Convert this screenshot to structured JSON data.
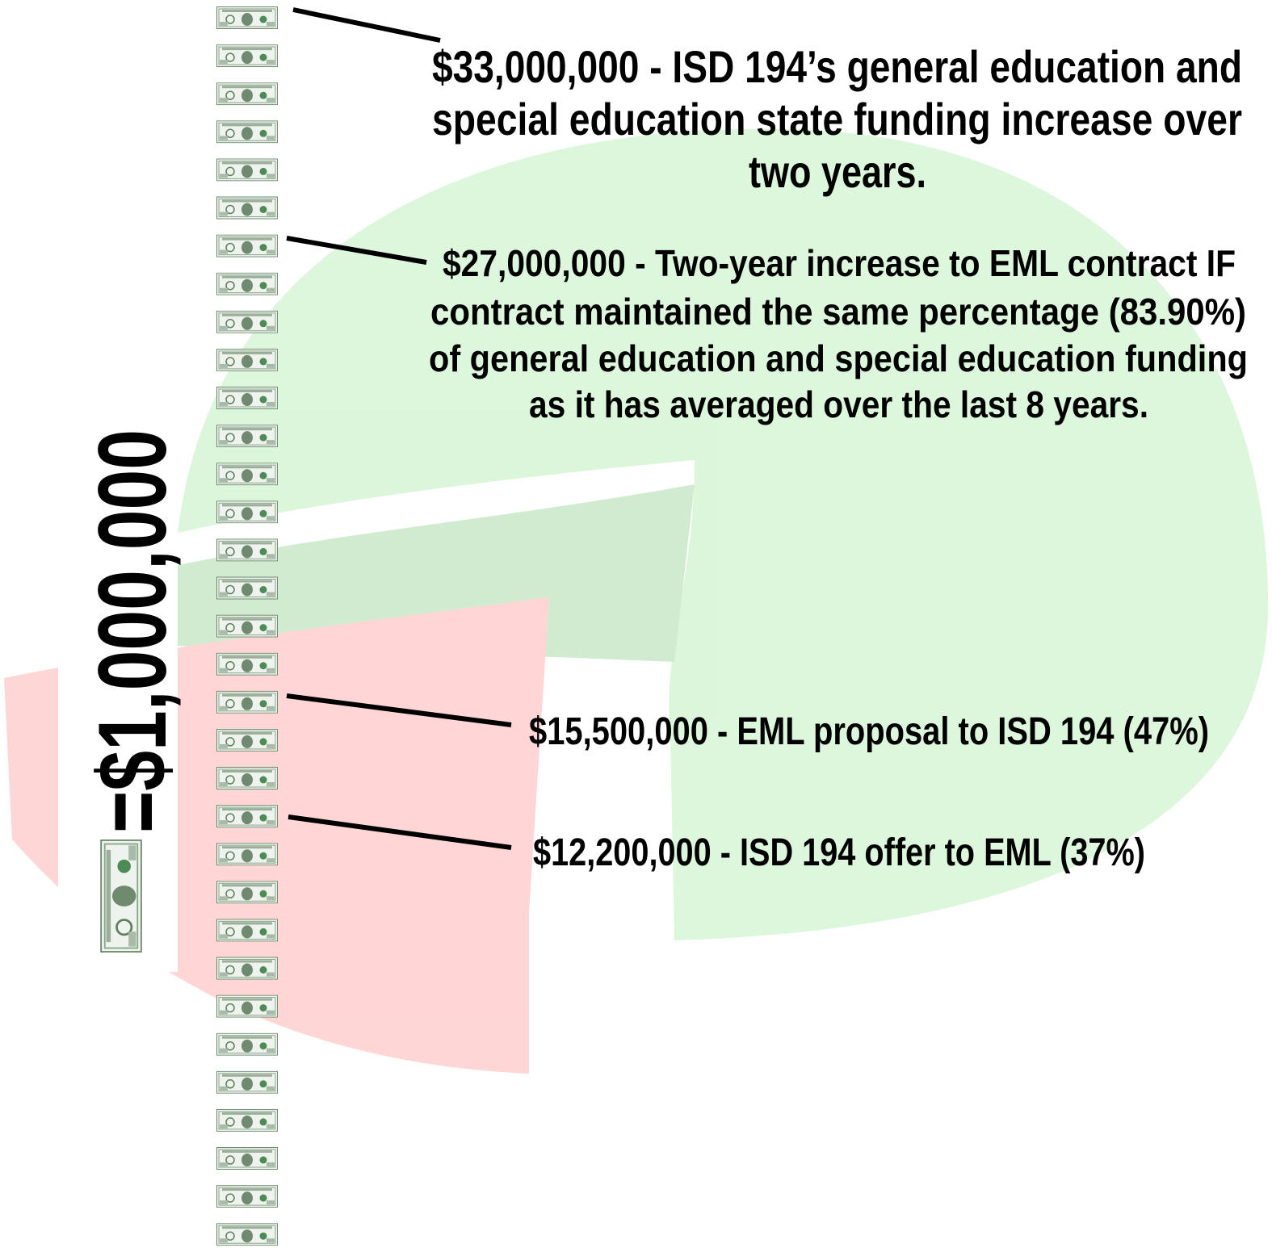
{
  "legend": {
    "label": "=$1,000,000"
  },
  "annotations": [
    {
      "lines": [
        "$33,000,000 - ISD 194’s general education and",
        "special education state funding increase over",
        "two years."
      ]
    },
    {
      "lines": [
        "$27,000,000 - Two-year increase to EML contract IF",
        "contract maintained the same percentage (83.90%)",
        "of general education and special education funding",
        "as it has averaged over the last 8 years."
      ]
    },
    {
      "lines": [
        "$15,500,000 - EML proposal to ISD 194 (47%)"
      ]
    },
    {
      "lines": [
        "$12,200,000 - ISD 194 offer to EML (37%)"
      ]
    }
  ]
}
